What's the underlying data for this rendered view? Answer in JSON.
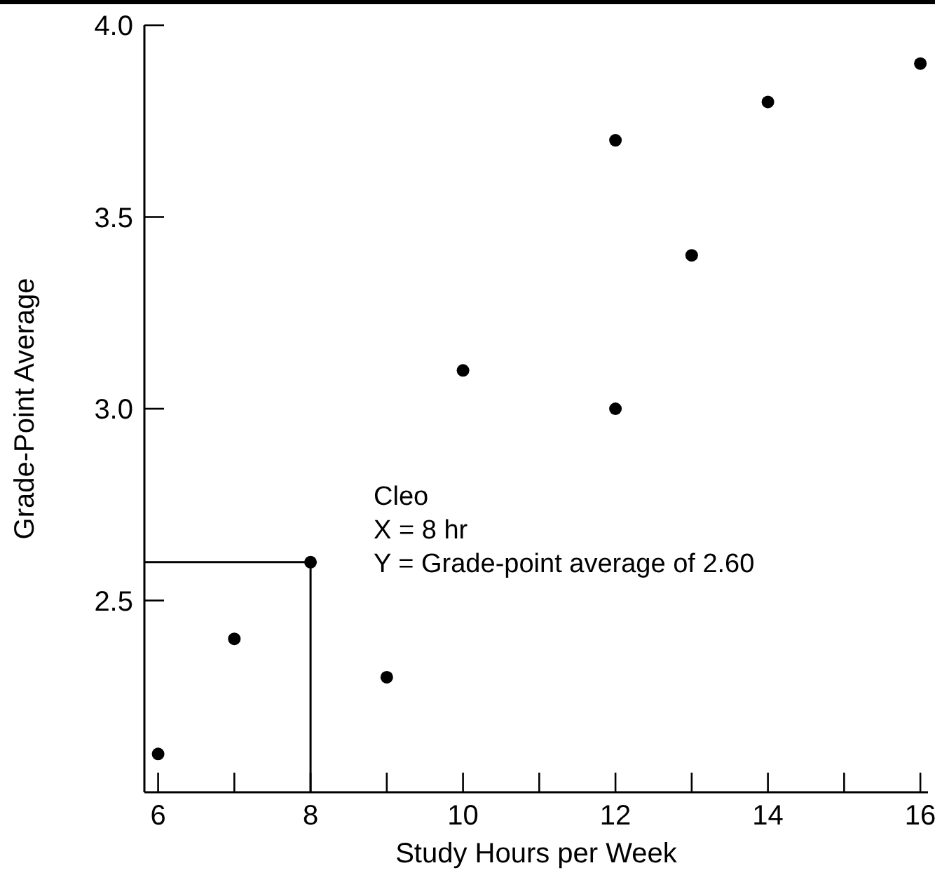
{
  "chart_data": {
    "type": "scatter",
    "xlabel": "Study Hours per Week",
    "ylabel": "Grade-Point Average",
    "x": [
      6,
      7,
      8,
      9,
      10,
      12,
      12,
      13,
      14,
      16
    ],
    "values": [
      2.1,
      2.4,
      2.6,
      2.3,
      3.1,
      3.0,
      3.7,
      3.4,
      3.8,
      3.9
    ],
    "color": "#000000",
    "marker": "circle",
    "xlim": [
      5.82,
      16.1
    ],
    "ylim": [
      2.0,
      4.0
    ],
    "xticks": [
      6,
      {
        "value": 7,
        "label": null
      },
      8,
      {
        "value": 9,
        "label": null
      },
      10,
      {
        "value": 11,
        "label": null
      },
      12,
      {
        "value": 13,
        "label": null
      },
      14,
      {
        "value": 15,
        "label": null
      },
      16
    ],
    "yticks": [
      2.5,
      {
        "value": 3,
        "label": "3.0"
      },
      3.5,
      {
        "value": 4,
        "label": "4.0"
      }
    ],
    "grid": false,
    "annotations": [
      "Cleo",
      "X = 8 hr",
      {
        "text": "Y = Grade-point average of 2.60",
        "x": 8,
        "y": 2.6
      }
    ]
  }
}
